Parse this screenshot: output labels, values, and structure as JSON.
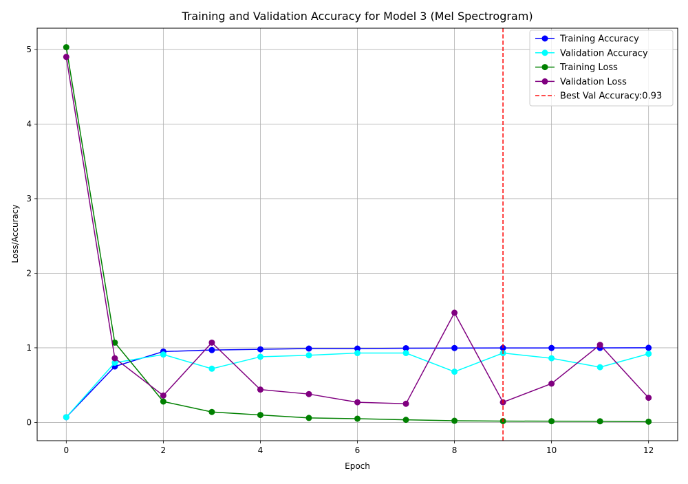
{
  "chart_data": {
    "type": "line",
    "title": "Training and Validation Accuracy for Model 3 (Mel Spectrogram)",
    "xlabel": "Epoch",
    "ylabel": "Loss/Accuracy",
    "xlim": [
      -0.6,
      12.6
    ],
    "ylim": [
      -0.245,
      5.285
    ],
    "x_ticks": [
      0,
      2,
      4,
      6,
      8,
      10,
      12
    ],
    "y_ticks": [
      0,
      1,
      2,
      3,
      4,
      5
    ],
    "grid": true,
    "legend_position": "top-right",
    "x": [
      0,
      1,
      2,
      3,
      4,
      5,
      6,
      7,
      8,
      9,
      10,
      11,
      12
    ],
    "series": [
      {
        "name": "Training Accuracy",
        "color": "#0000ff",
        "values": [
          0.07,
          0.75,
          0.95,
          0.97,
          0.98,
          0.99,
          0.99,
          0.995,
          0.997,
          0.998,
          0.998,
          0.999,
          1.0
        ]
      },
      {
        "name": "Validation Accuracy",
        "color": "#00ffff",
        "values": [
          0.07,
          0.8,
          0.91,
          0.72,
          0.88,
          0.9,
          0.93,
          0.93,
          0.68,
          0.93,
          0.86,
          0.74,
          0.92
        ]
      },
      {
        "name": "Training Loss",
        "color": "#008000",
        "values": [
          5.03,
          1.07,
          0.28,
          0.14,
          0.1,
          0.06,
          0.05,
          0.035,
          0.022,
          0.018,
          0.016,
          0.015,
          0.01
        ]
      },
      {
        "name": "Validation Loss",
        "color": "#800080",
        "values": [
          4.9,
          0.86,
          0.36,
          1.07,
          0.44,
          0.38,
          0.27,
          0.25,
          1.47,
          0.27,
          0.52,
          1.04,
          0.33
        ]
      }
    ],
    "vline": {
      "x": 9,
      "color": "#ff0000",
      "style": "dashed",
      "label": "Best Val Accuracy:0.93"
    }
  }
}
